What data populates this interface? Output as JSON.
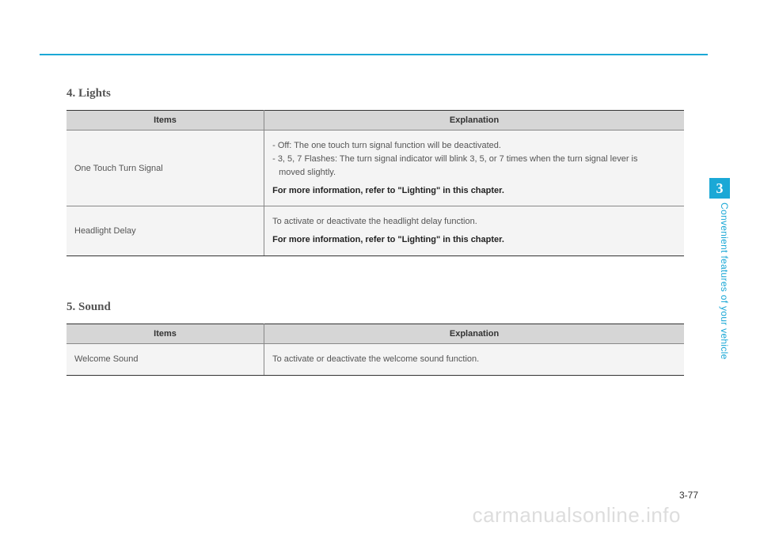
{
  "page": {
    "number": "3-77",
    "watermark": "carmanualsonline.info"
  },
  "side": {
    "chapter_number": "3",
    "chapter_label": "Convenient features of your vehicle",
    "tab_color": "#1ba8d6"
  },
  "sections": [
    {
      "title": "4. Lights",
      "headers": {
        "items": "Items",
        "explanation": "Explanation"
      },
      "rows": [
        {
          "item": "One Touch Turn Signal",
          "lines": [
            "- Off: The one touch turn signal function will be deactivated.",
            "- 3, 5, 7 Flashes: The turn signal indicator will blink 3, 5, or 7 times when the turn signal lever is",
            "  moved slightly."
          ],
          "note": "For more information, refer to \"Lighting\" in this chapter."
        },
        {
          "item": "Headlight Delay",
          "lines": [
            "To activate or deactivate the headlight delay function."
          ],
          "note": "For more information, refer to \"Lighting\" in this chapter."
        }
      ]
    },
    {
      "title": "5. Sound",
      "headers": {
        "items": "Items",
        "explanation": "Explanation"
      },
      "rows": [
        {
          "item": "Welcome Sound",
          "lines": [
            "To activate or deactivate the welcome sound function."
          ],
          "note": ""
        }
      ]
    }
  ]
}
